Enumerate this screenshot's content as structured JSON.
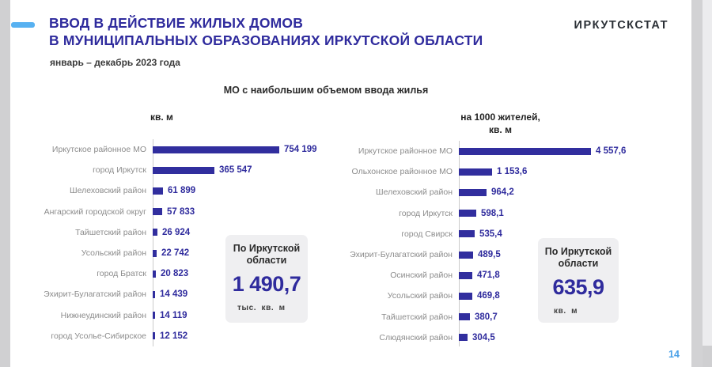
{
  "app": {
    "logo": "ИРКУТСКСТАТ",
    "page_number": "14"
  },
  "header": {
    "title_line1": "ВВОД В ДЕЙСТВИЕ ЖИЛЫХ ДОМОВ",
    "title_line2": "В МУНИЦИПАЛЬНЫХ ОБРАЗОВАНИЯХ ИРКУТСКОЙ ОБЛАСТИ",
    "subtitle": "январь – декабрь 2023 года"
  },
  "section": {
    "title": "МО с наибольшим объемом ввода жилья"
  },
  "colors": {
    "title_blue": "#2f2b9d",
    "bar_blue": "#312e9e",
    "dash_light_blue": "#57b1f1",
    "page_number_blue": "#4ba1e8",
    "category_label_gray": "#8c8c8c",
    "callout_bg": "#efeff1"
  },
  "chart_data": [
    {
      "type": "bar",
      "orientation": "horizontal",
      "header": "кв. м",
      "ylabel": "",
      "xlabel": "кв. м",
      "grid": false,
      "legend": false,
      "sort": "descending",
      "categories": [
        "Иркутское районное МО",
        "город Иркутск",
        "Шелеховский район",
        "Ангарский городской округ",
        "Тайшетский район",
        "Усольский район",
        "город Братск",
        "Эхирит-Булагатский район",
        "Нижнеудинский район",
        "город Усолье-Сибирское"
      ],
      "values": [
        754199,
        365547,
        61899,
        57833,
        26924,
        22742,
        20823,
        14439,
        14119,
        12152
      ],
      "value_labels": [
        "754 199",
        "365 547",
        "61 899",
        "57 833",
        "26 924",
        "22 742",
        "20 823",
        "14 439",
        "14 119",
        "12 152"
      ],
      "xlim": [
        0,
        754199
      ],
      "bar_color": "#312e9e",
      "callout": {
        "label": "По Иркутской области",
        "value": "1 490,7",
        "unit": "тыс. кв. м"
      }
    },
    {
      "type": "bar",
      "orientation": "horizontal",
      "header_line1": "на 1000 жителей,",
      "header_line2": "кв. м",
      "ylabel": "",
      "xlabel": "на 1000 жителей, кв. м",
      "grid": false,
      "legend": false,
      "sort": "descending",
      "categories": [
        "Иркутское районное МО",
        "Ольхонское районное МО",
        "Шелеховский район",
        "город Иркутск",
        "город Свирск",
        "Эхирит-Булагатский район",
        "Осинский район",
        "Усольский район",
        "Тайшетский район",
        "Слюдянский район"
      ],
      "values": [
        4557.6,
        1153.6,
        964.2,
        598.1,
        535.4,
        489.5,
        471.8,
        469.8,
        380.7,
        304.5
      ],
      "value_labels": [
        "4 557,6",
        "1 153,6",
        "964,2",
        "598,1",
        "535,4",
        "489,5",
        "471,8",
        "469,8",
        "380,7",
        "304,5"
      ],
      "xlim": [
        0,
        4557.6
      ],
      "bar_color": "#312e9e",
      "callout": {
        "label": "По Иркутской области",
        "value": "635,9",
        "unit": "кв. м"
      }
    }
  ]
}
